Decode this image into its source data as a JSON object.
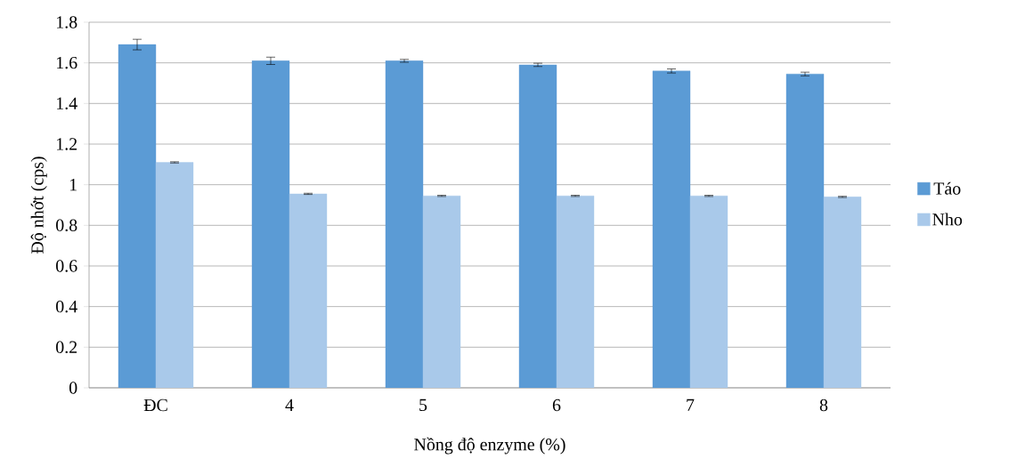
{
  "chart_data": {
    "type": "bar",
    "xlabel": "Nồng độ enzyme (%)",
    "ylabel": "Độ nhớt (cps)",
    "categories": [
      "ĐC",
      "4",
      "5",
      "6",
      "7",
      "8"
    ],
    "series": [
      {
        "name": "Táo",
        "color": "#5b9bd5",
        "values": [
          1.69,
          1.61,
          1.61,
          1.59,
          1.56,
          1.545
        ],
        "errors": [
          0.026,
          0.018,
          0.007,
          0.008,
          0.01,
          0.009
        ]
      },
      {
        "name": "Nho",
        "color": "#a9c9ea",
        "values": [
          1.11,
          0.955,
          0.945,
          0.945,
          0.945,
          0.94
        ],
        "errors": [
          0.003,
          0.003,
          0.003,
          0.003,
          0.003,
          0.003
        ]
      }
    ],
    "ylim": [
      0,
      1.8
    ],
    "yticks": [
      0,
      0.2,
      0.4,
      0.6,
      0.8,
      1,
      1.2,
      1.4,
      1.6,
      1.8
    ],
    "grid": "y",
    "legend": "right"
  }
}
